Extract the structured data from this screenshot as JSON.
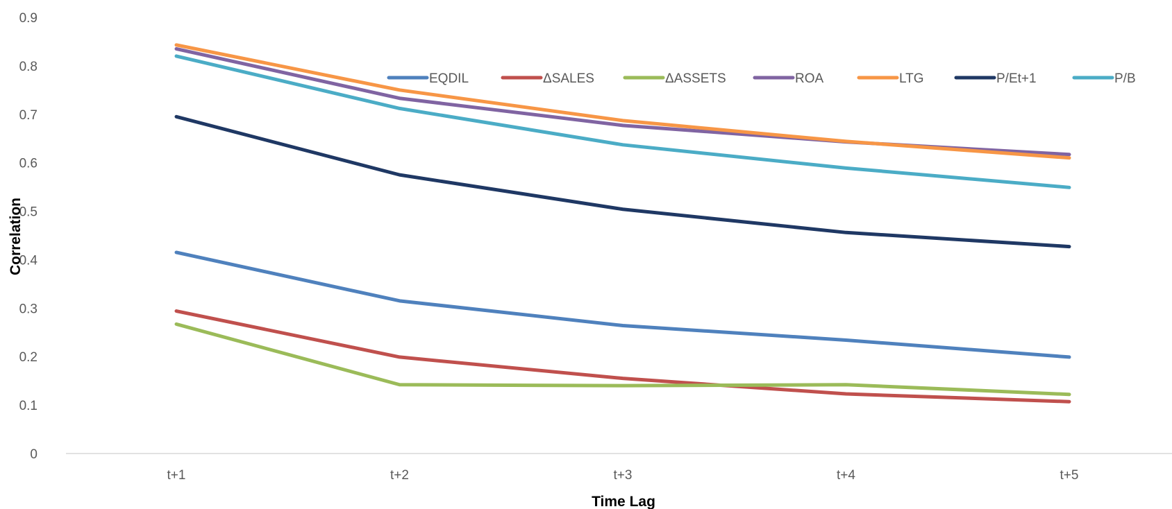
{
  "chart_data": {
    "type": "line",
    "categories": [
      "t+1",
      "t+2",
      "t+3",
      "t+4",
      "t+5"
    ],
    "xlabel": "Time Lag",
    "ylabel": "Correlation",
    "ylim": [
      0,
      0.9
    ],
    "yticks": [
      "0",
      "0.1",
      "0.2",
      "0.3",
      "0.4",
      "0.5",
      "0.6",
      "0.7",
      "0.8",
      "0.9"
    ],
    "grid": false,
    "legend_position": "top-right",
    "series": [
      {
        "name": "EQDIL",
        "color": "#4f81bd",
        "values": [
          0.415,
          0.315,
          0.264,
          0.234,
          0.199
        ]
      },
      {
        "name": "ΔSALES",
        "color": "#c0504d",
        "values": [
          0.294,
          0.199,
          0.155,
          0.123,
          0.107
        ]
      },
      {
        "name": "ΔASSETS",
        "color": "#9bbb59",
        "values": [
          0.267,
          0.142,
          0.14,
          0.142,
          0.122
        ]
      },
      {
        "name": "ROA",
        "color": "#8064a2",
        "values": [
          0.835,
          0.733,
          0.677,
          0.643,
          0.617
        ]
      },
      {
        "name": "LTG",
        "color": "#f79646",
        "values": [
          0.843,
          0.75,
          0.687,
          0.644,
          0.61
        ]
      },
      {
        "name": "P/Et+1",
        "color": "#1f3864",
        "values": [
          0.695,
          0.575,
          0.504,
          0.456,
          0.427
        ]
      },
      {
        "name": "P/B",
        "color": "#4bacc6",
        "values": [
          0.82,
          0.712,
          0.637,
          0.589,
          0.549
        ]
      }
    ]
  }
}
